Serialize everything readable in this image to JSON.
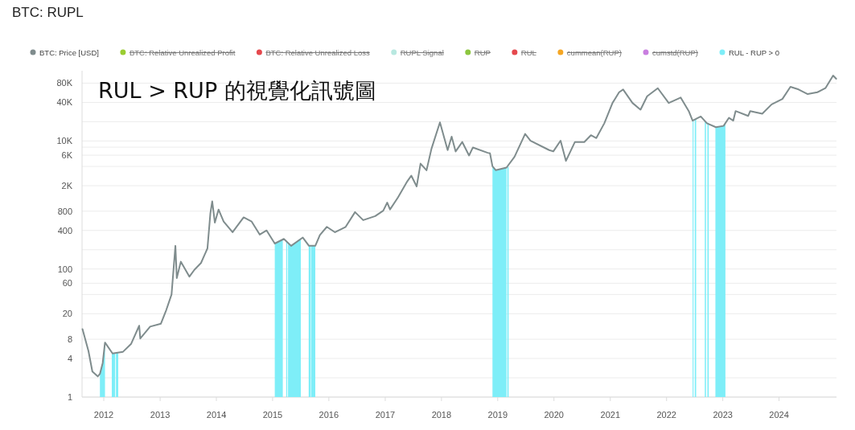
{
  "chart_data": {
    "type": "line",
    "title": "BTC: RUPL",
    "annotations": [
      "RUL > RUP 的視覺化訊號圖"
    ],
    "xlim": [
      "2011-08-13",
      "2025-01-08"
    ],
    "xticks": [
      "2012",
      "2013",
      "2014",
      "2015",
      "2016",
      "2017",
      "2018",
      "2019",
      "2020",
      "2021",
      "2022",
      "2023",
      "2024"
    ],
    "ylim": [
      1,
      125000
    ],
    "yticks": [
      1,
      {
        "value": 2,
        "label": null
      },
      4,
      8,
      20,
      {
        "value": 40,
        "label": null
      },
      60,
      100,
      {
        "value": 200,
        "label": null
      },
      400,
      800,
      {
        "value": 2000,
        "label": "2K"
      },
      {
        "value": 4000,
        "label": null
      },
      {
        "value": 6000,
        "label": "6K"
      },
      {
        "value": 8000,
        "label": null
      },
      {
        "value": 10000,
        "label": "10K"
      },
      {
        "value": 20000,
        "label": null
      },
      {
        "value": 40000,
        "label": "40K"
      },
      {
        "value": 80000,
        "label": "80K"
      }
    ],
    "log": true,
    "grid": "y",
    "legend": "top",
    "series": [
      {
        "name": "BTC: Price [USD]",
        "color": "#7f8c8d",
        "x": [
          "2011-08-16",
          "2011-09-24",
          "2011-10-19",
          "2011-11-23",
          "2011-12-07",
          "2011-12-25",
          "2012-01-09",
          "2012-02-27",
          "2012-05-05",
          "2012-06-27",
          "2012-08-18",
          "2012-08-25",
          "2012-10-28",
          "2013-01-06",
          "2013-02-10",
          "2013-03-16",
          "2013-04-10",
          "2013-04-19",
          "2013-05-15",
          "2013-07-10",
          "2013-08-11",
          "2013-09-23",
          "2013-11-04",
          "2013-11-23",
          "2013-12-05",
          "2013-12-22",
          "2014-01-15",
          "2014-02-17",
          "2014-04-16",
          "2014-06-27",
          "2014-08-18",
          "2014-10-09",
          "2014-11-23",
          "2015-01-15",
          "2015-03-15",
          "2015-05-01",
          "2015-07-16",
          "2015-08-25",
          "2015-10-05",
          "2015-11-04",
          "2015-12-19",
          "2016-02-10",
          "2016-04-19",
          "2016-06-19",
          "2016-08-11",
          "2016-10-28",
          "2016-12-19",
          "2017-01-14",
          "2017-02-01",
          "2017-03-25",
          "2017-05-25",
          "2017-06-19",
          "2017-07-24",
          "2017-08-18",
          "2017-09-26",
          "2017-10-28",
          "2017-12-22",
          "2018-02-10",
          "2018-03-08",
          "2018-04-03",
          "2018-05-16",
          "2018-06-29",
          "2018-07-24",
          "2018-10-28",
          "2018-11-12",
          "2018-11-28",
          "2018-12-19",
          "2019-02-27",
          "2019-04-20",
          "2019-06-28",
          "2019-08-02",
          "2019-12-01",
          "2019-12-28",
          "2020-02-13",
          "2020-03-19",
          "2020-05-16",
          "2020-07-16",
          "2020-08-28",
          "2020-10-02",
          "2020-11-23",
          "2021-01-15",
          "2021-02-27",
          "2021-03-25",
          "2021-05-25",
          "2021-07-16",
          "2021-08-28",
          "2021-11-05",
          "2022-01-15",
          "2022-04-03",
          "2022-05-25",
          "2022-06-19",
          "2022-08-11",
          "2022-09-20",
          "2022-11-17",
          "2023-01-06",
          "2023-02-10",
          "2023-03-10",
          "2023-03-25",
          "2023-06-15",
          "2023-06-28",
          "2023-09-14",
          "2023-11-14",
          "2024-01-23",
          "2024-03-15",
          "2024-05-07",
          "2024-07-05",
          "2024-09-06",
          "2024-10-28",
          "2024-12-17",
          "2025-01-06"
        ],
        "values": [
          11.5,
          5.2,
          2.5,
          2.1,
          2.3,
          3.4,
          7.1,
          4.8,
          5.1,
          6.8,
          13,
          8.2,
          12.6,
          14,
          23,
          40,
          230,
          72,
          130,
          76,
          97,
          124,
          210,
          740,
          1140,
          530,
          850,
          550,
          375,
          640,
          550,
          345,
          400,
          250,
          295,
          230,
          310,
          230,
          230,
          340,
          455,
          375,
          455,
          775,
          580,
          670,
          815,
          1090,
          850,
          1320,
          2360,
          2870,
          1950,
          4430,
          3480,
          7550,
          19500,
          7200,
          11700,
          6860,
          9630,
          5930,
          7920,
          6530,
          6400,
          4030,
          3500,
          3840,
          5640,
          12900,
          10100,
          7200,
          6860,
          10100,
          4880,
          9630,
          9630,
          12300,
          11100,
          18900,
          39200,
          57700,
          63700,
          39200,
          30800,
          49900,
          66700,
          39200,
          47600,
          29300,
          20800,
          24100,
          18900,
          16400,
          17200,
          23000,
          20800,
          29300,
          24600,
          29300,
          26600,
          37300,
          45300,
          70000,
          63700,
          54000,
          57700,
          66700,
          105000,
          93700
        ]
      },
      {
        "name": "BTC: Relative Unrealized Profit",
        "color": "#9acd32"
      },
      {
        "name": "BTC: Relative Unrealized Loss",
        "color": "#e5484d"
      },
      {
        "name": "RUPL Signal",
        "color": "#b8e8e0"
      },
      {
        "name": "RUP",
        "color": "#8cc63f"
      },
      {
        "name": "RUL",
        "color": "#e5484d"
      },
      {
        "name": "cummean(RUP)",
        "color": "#f5a623"
      },
      {
        "name": "cumstd(RUP)",
        "color": "#c97fe0"
      },
      {
        "name": "RUL - RUP > 0",
        "type": "area",
        "color": "#7eeef8",
        "x": [
          "2011-12-07",
          "2011-12-25",
          "2012-01-09",
          "2012-02-01",
          "2012-02-22",
          "2012-03-15",
          "2012-03-17",
          "2012-03-20",
          "2012-04-04",
          "2013-01-01",
          "2015-01-15",
          "2015-03-08",
          "2015-03-20",
          "2015-03-30",
          "2015-04-06",
          "2015-04-08",
          "2015-04-11",
          "2015-05-01",
          "2015-07-03",
          "2015-08-01",
          "2015-08-23",
          "2015-09-06",
          "2015-09-08",
          "2015-09-09",
          "2015-10-05",
          "2016-01-01",
          "2018-11-28",
          "2018-12-19",
          "2019-02-27",
          "2019-03-01",
          "2019-03-04",
          "2019-03-13",
          "2020-01-01",
          "2022-06-19",
          "2022-06-25",
          "2022-06-28",
          "2022-07-03",
          "2022-07-12",
          "2022-08-01",
          "2022-09-06",
          "2022-09-14",
          "2022-09-18",
          "2022-09-23",
          "2022-10-02",
          "2022-10-20",
          "2022-11-14",
          "2023-01-06",
          "2023-01-18"
        ],
        "values": [
          2.3,
          3.4,
          7.1,
          null,
          4.8,
          4.9,
          null,
          4.9,
          5,
          null,
          250,
          290,
          null,
          280,
          270,
          null,
          265,
          230,
          300,
          null,
          230,
          230,
          null,
          230,
          230,
          null,
          4030,
          3500,
          3840,
          null,
          3900,
          3950,
          null,
          20800,
          21000,
          null,
          21500,
          22000,
          null,
          20000,
          20000,
          null,
          19500,
          19000,
          null,
          16400,
          17200,
          19000
        ]
      }
    ]
  }
}
